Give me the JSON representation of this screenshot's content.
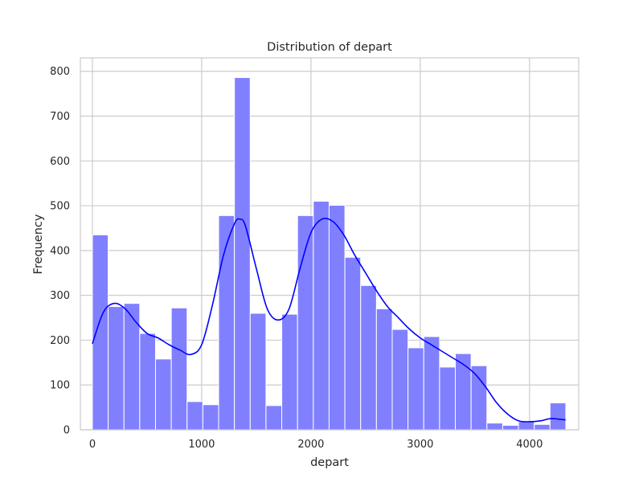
{
  "chart_data": {
    "type": "bar",
    "title": "Distribution of depart",
    "xlabel": "depart",
    "ylabel": "Frequency",
    "xlim": [
      -110,
      4450
    ],
    "ylim": [
      0,
      830
    ],
    "xticks": [
      0,
      1000,
      2000,
      3000,
      4000
    ],
    "yticks": [
      0,
      100,
      200,
      300,
      400,
      500,
      600,
      700,
      800
    ],
    "grid": true,
    "bar_color": "#8080ff",
    "bar_edge_color": "#ffffff",
    "kde_color": "#0000ff",
    "grid_color": "#cccccc",
    "bins": {
      "start": 0,
      "width": 144.4,
      "values": [
        435,
        275,
        282,
        215,
        158,
        272,
        63,
        56,
        478,
        786,
        260,
        54,
        258,
        478,
        510,
        501,
        385,
        322,
        270,
        224,
        183,
        208,
        140,
        170,
        143,
        15,
        10,
        18,
        12,
        60
      ]
    },
    "kde": {
      "x": [
        0,
        100,
        200,
        300,
        400,
        500,
        600,
        700,
        800,
        900,
        1000,
        1100,
        1200,
        1300,
        1350,
        1400,
        1500,
        1600,
        1700,
        1800,
        1900,
        2000,
        2100,
        2200,
        2300,
        2400,
        2500,
        2600,
        2700,
        2800,
        2900,
        3000,
        3100,
        3200,
        3300,
        3400,
        3500,
        3600,
        3700,
        3800,
        3900,
        4000,
        4100,
        4200,
        4330
      ],
      "y": [
        192,
        262,
        282,
        270,
        240,
        215,
        205,
        190,
        178,
        168,
        190,
        280,
        390,
        460,
        470,
        455,
        360,
        270,
        245,
        270,
        360,
        440,
        470,
        465,
        435,
        390,
        350,
        310,
        275,
        250,
        225,
        205,
        190,
        175,
        160,
        145,
        125,
        95,
        60,
        35,
        20,
        18,
        20,
        25,
        22
      ]
    }
  }
}
